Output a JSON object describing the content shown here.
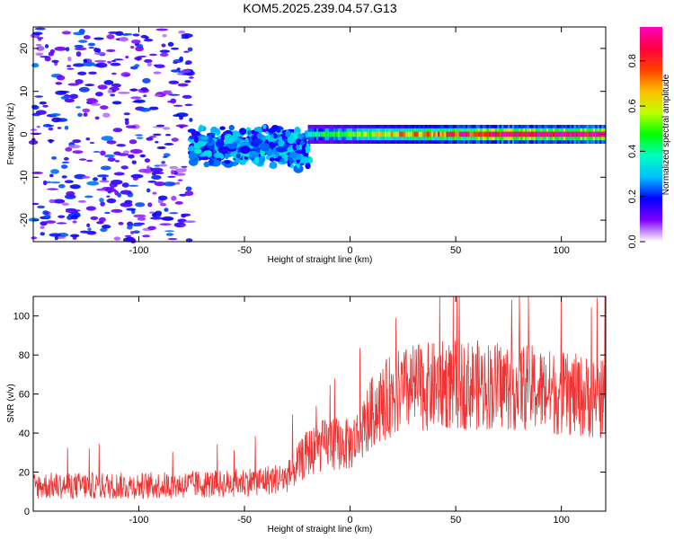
{
  "chart_data": [
    {
      "type": "heatmap",
      "title": "KOM5.2025.239.04.57.G13",
      "xlabel": "Height of straight line (km)",
      "ylabel": "Frequency (Hz)",
      "xlim": [
        -150,
        121
      ],
      "ylim": [
        -25,
        25
      ],
      "x_ticks": [
        -100,
        -50,
        0,
        50,
        100
      ],
      "y_ticks": [
        -20,
        -10,
        0,
        10,
        20
      ],
      "colorbar": {
        "label": "Normalized spectral amplitude",
        "range": [
          0,
          0.95
        ],
        "ticks": [
          "0.0",
          "0.2",
          "0.4",
          "0.6",
          "0.8"
        ],
        "ramp": [
          "#ffffff",
          "#7f00ff",
          "#0000ff",
          "#00bfff",
          "#00ffbf",
          "#00ff00",
          "#bfff00",
          "#ffbf00",
          "#ff4000",
          "#ff0040",
          "#ff00bf"
        ]
      },
      "description_series": [
        {
          "name": "noise",
          "x_range": [
            -150,
            -75
          ],
          "y_range": [
            -25,
            25
          ],
          "amplitude": [
            0.05,
            0.25
          ]
        },
        {
          "name": "onset",
          "x_range": [
            -75,
            -20
          ],
          "center_y": -3,
          "spread": 4,
          "amplitude": [
            0.15,
            0.35
          ]
        },
        {
          "name": "signal",
          "x_range": [
            -20,
            121
          ],
          "center_y": 0,
          "spread": 1,
          "amplitude": [
            0.4,
            0.95
          ]
        }
      ]
    },
    {
      "type": "line",
      "xlabel": "Height of straight line (km)",
      "ylabel": "SNR (v/v)",
      "xlim": [
        -150,
        121
      ],
      "ylim": [
        0,
        110
      ],
      "x_ticks": [
        -100,
        -50,
        0,
        50,
        100
      ],
      "y_ticks": [
        0,
        20,
        40,
        60,
        80,
        100
      ],
      "color": "#ee3333",
      "series": [
        {
          "name": "SNR",
          "x": [
            -150,
            -100,
            -60,
            -30,
            -20,
            -10,
            0,
            5,
            10,
            20,
            30,
            50,
            80,
            100,
            121
          ],
          "y": [
            13,
            13,
            14,
            17,
            30,
            35,
            34,
            40,
            50,
            60,
            63,
            65,
            64,
            60,
            58
          ]
        }
      ]
    }
  ]
}
